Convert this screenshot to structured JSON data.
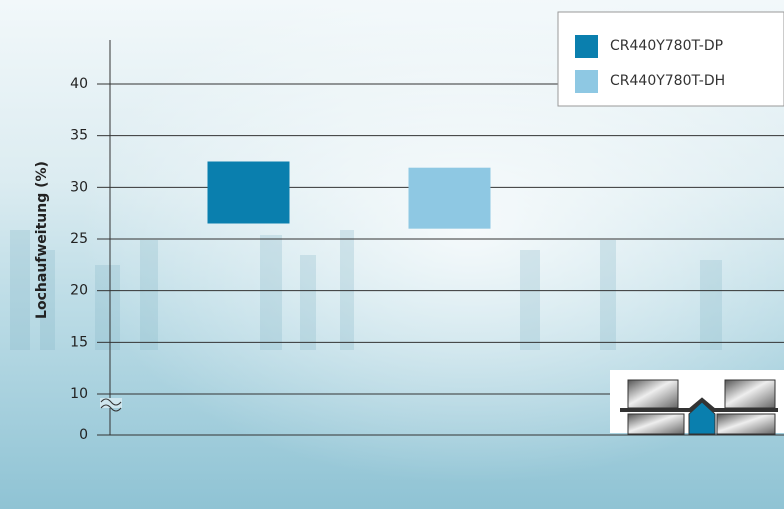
{
  "chart_data": {
    "type": "floating-bar",
    "y_label": "Lochaufweitung (%)",
    "ylim": [
      0,
      40
    ],
    "yticks": [
      0,
      10,
      15,
      20,
      25,
      30,
      35,
      40
    ],
    "y_break": true,
    "grid": true,
    "legend": "top-right",
    "series": [
      {
        "name": "CR440Y780T-DP",
        "color": "#0a7fae",
        "low": 26.5,
        "high": 32.5
      },
      {
        "name": "CR440Y780T-DH",
        "color": "#8ec8e3",
        "low": 26.0,
        "high": 31.9
      }
    ]
  }
}
